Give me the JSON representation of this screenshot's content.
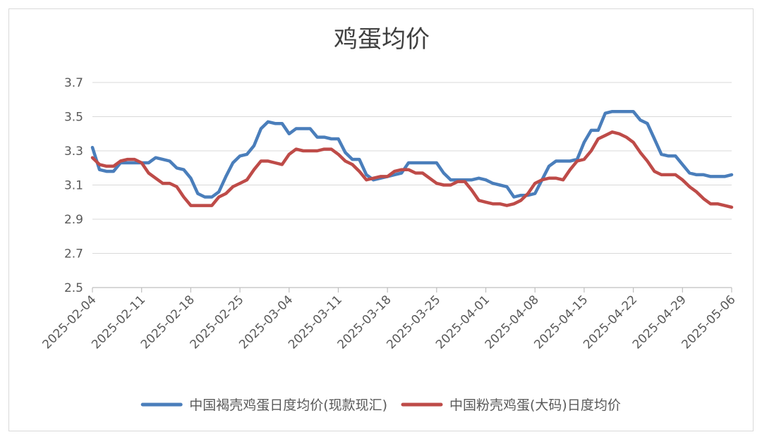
{
  "chart_data": {
    "type": "line",
    "title": "鸡蛋均价",
    "xlabel": "",
    "ylabel": "",
    "ylim": [
      2.5,
      3.7
    ],
    "yticks": [
      2.5,
      2.7,
      2.9,
      3.1,
      3.3,
      3.5,
      3.7
    ],
    "ytick_labels": [
      "2.5",
      "2.7",
      "2.9",
      "3.1",
      "3.3",
      "3.5",
      "3.7"
    ],
    "x_range": [
      "2025-02-04",
      "2025-05-06"
    ],
    "xtick_labels": [
      "2025-02-04",
      "2025-02-11",
      "2025-02-18",
      "2025-02-25",
      "2025-03-04",
      "2025-03-11",
      "2025-03-18",
      "2025-03-25",
      "2025-04-01",
      "2025-04-08",
      "2025-04-15",
      "2025-04-22",
      "2025-04-29",
      "2025-05-06"
    ],
    "grid": true,
    "legend_position": "bottom",
    "series": [
      {
        "name": "中国褐壳鸡蛋日度均价(现款现汇)",
        "color": "#4a7ebb",
        "points": [
          [
            "2025-02-04",
            3.32
          ],
          [
            "2025-02-05",
            3.19
          ],
          [
            "2025-02-06",
            3.18
          ],
          [
            "2025-02-07",
            3.18
          ],
          [
            "2025-02-08",
            3.23
          ],
          [
            "2025-02-09",
            3.23
          ],
          [
            "2025-02-10",
            3.23
          ],
          [
            "2025-02-11",
            3.23
          ],
          [
            "2025-02-12",
            3.23
          ],
          [
            "2025-02-13",
            3.26
          ],
          [
            "2025-02-14",
            3.25
          ],
          [
            "2025-02-15",
            3.24
          ],
          [
            "2025-02-16",
            3.2
          ],
          [
            "2025-02-17",
            3.19
          ],
          [
            "2025-02-18",
            3.14
          ],
          [
            "2025-02-19",
            3.05
          ],
          [
            "2025-02-20",
            3.03
          ],
          [
            "2025-02-21",
            3.03
          ],
          [
            "2025-02-22",
            3.06
          ],
          [
            "2025-02-23",
            3.15
          ],
          [
            "2025-02-24",
            3.23
          ],
          [
            "2025-02-25",
            3.27
          ],
          [
            "2025-02-26",
            3.28
          ],
          [
            "2025-02-27",
            3.33
          ],
          [
            "2025-02-28",
            3.43
          ],
          [
            "2025-03-01",
            3.47
          ],
          [
            "2025-03-02",
            3.46
          ],
          [
            "2025-03-03",
            3.46
          ],
          [
            "2025-03-04",
            3.4
          ],
          [
            "2025-03-05",
            3.43
          ],
          [
            "2025-03-06",
            3.43
          ],
          [
            "2025-03-07",
            3.43
          ],
          [
            "2025-03-08",
            3.38
          ],
          [
            "2025-03-09",
            3.38
          ],
          [
            "2025-03-10",
            3.37
          ],
          [
            "2025-03-11",
            3.37
          ],
          [
            "2025-03-12",
            3.29
          ],
          [
            "2025-03-13",
            3.25
          ],
          [
            "2025-03-14",
            3.25
          ],
          [
            "2025-03-15",
            3.16
          ],
          [
            "2025-03-16",
            3.13
          ],
          [
            "2025-03-17",
            3.14
          ],
          [
            "2025-03-18",
            3.15
          ],
          [
            "2025-03-19",
            3.16
          ],
          [
            "2025-03-20",
            3.17
          ],
          [
            "2025-03-21",
            3.23
          ],
          [
            "2025-03-22",
            3.23
          ],
          [
            "2025-03-23",
            3.23
          ],
          [
            "2025-03-24",
            3.23
          ],
          [
            "2025-03-25",
            3.23
          ],
          [
            "2025-03-26",
            3.17
          ],
          [
            "2025-03-27",
            3.13
          ],
          [
            "2025-03-28",
            3.13
          ],
          [
            "2025-03-29",
            3.13
          ],
          [
            "2025-03-30",
            3.13
          ],
          [
            "2025-03-31",
            3.14
          ],
          [
            "2025-04-01",
            3.13
          ],
          [
            "2025-04-02",
            3.11
          ],
          [
            "2025-04-03",
            3.1
          ],
          [
            "2025-04-04",
            3.09
          ],
          [
            "2025-04-05",
            3.03
          ],
          [
            "2025-04-06",
            3.04
          ],
          [
            "2025-04-07",
            3.04
          ],
          [
            "2025-04-08",
            3.05
          ],
          [
            "2025-04-09",
            3.13
          ],
          [
            "2025-04-10",
            3.21
          ],
          [
            "2025-04-11",
            3.24
          ],
          [
            "2025-04-12",
            3.24
          ],
          [
            "2025-04-13",
            3.24
          ],
          [
            "2025-04-14",
            3.25
          ],
          [
            "2025-04-15",
            3.35
          ],
          [
            "2025-04-16",
            3.42
          ],
          [
            "2025-04-17",
            3.42
          ],
          [
            "2025-04-18",
            3.52
          ],
          [
            "2025-04-19",
            3.53
          ],
          [
            "2025-04-20",
            3.53
          ],
          [
            "2025-04-21",
            3.53
          ],
          [
            "2025-04-22",
            3.53
          ],
          [
            "2025-04-23",
            3.48
          ],
          [
            "2025-04-24",
            3.46
          ],
          [
            "2025-04-25",
            3.37
          ],
          [
            "2025-04-26",
            3.28
          ],
          [
            "2025-04-27",
            3.27
          ],
          [
            "2025-04-28",
            3.27
          ],
          [
            "2025-04-29",
            3.22
          ],
          [
            "2025-04-30",
            3.17
          ],
          [
            "2025-05-01",
            3.16
          ],
          [
            "2025-05-02",
            3.16
          ],
          [
            "2025-05-03",
            3.15
          ],
          [
            "2025-05-04",
            3.15
          ],
          [
            "2025-05-05",
            3.15
          ],
          [
            "2025-05-06",
            3.16
          ]
        ]
      },
      {
        "name": "中国粉壳鸡蛋(大码)日度均价",
        "color": "#be4b48",
        "points": [
          [
            "2025-02-04",
            3.26
          ],
          [
            "2025-02-05",
            3.22
          ],
          [
            "2025-02-06",
            3.21
          ],
          [
            "2025-02-07",
            3.21
          ],
          [
            "2025-02-08",
            3.24
          ],
          [
            "2025-02-09",
            3.25
          ],
          [
            "2025-02-10",
            3.25
          ],
          [
            "2025-02-11",
            3.23
          ],
          [
            "2025-02-12",
            3.17
          ],
          [
            "2025-02-13",
            3.14
          ],
          [
            "2025-02-14",
            3.11
          ],
          [
            "2025-02-15",
            3.11
          ],
          [
            "2025-02-16",
            3.09
          ],
          [
            "2025-02-17",
            3.03
          ],
          [
            "2025-02-18",
            2.98
          ],
          [
            "2025-02-19",
            2.98
          ],
          [
            "2025-02-20",
            2.98
          ],
          [
            "2025-02-21",
            2.98
          ],
          [
            "2025-02-22",
            3.03
          ],
          [
            "2025-02-23",
            3.05
          ],
          [
            "2025-02-24",
            3.09
          ],
          [
            "2025-02-25",
            3.11
          ],
          [
            "2025-02-26",
            3.13
          ],
          [
            "2025-02-27",
            3.19
          ],
          [
            "2025-02-28",
            3.24
          ],
          [
            "2025-03-01",
            3.24
          ],
          [
            "2025-03-02",
            3.23
          ],
          [
            "2025-03-03",
            3.22
          ],
          [
            "2025-03-04",
            3.28
          ],
          [
            "2025-03-05",
            3.31
          ],
          [
            "2025-03-06",
            3.3
          ],
          [
            "2025-03-07",
            3.3
          ],
          [
            "2025-03-08",
            3.3
          ],
          [
            "2025-03-09",
            3.31
          ],
          [
            "2025-03-10",
            3.31
          ],
          [
            "2025-03-11",
            3.28
          ],
          [
            "2025-03-12",
            3.24
          ],
          [
            "2025-03-13",
            3.22
          ],
          [
            "2025-03-14",
            3.18
          ],
          [
            "2025-03-15",
            3.13
          ],
          [
            "2025-03-16",
            3.14
          ],
          [
            "2025-03-17",
            3.15
          ],
          [
            "2025-03-18",
            3.15
          ],
          [
            "2025-03-19",
            3.18
          ],
          [
            "2025-03-20",
            3.19
          ],
          [
            "2025-03-21",
            3.19
          ],
          [
            "2025-03-22",
            3.17
          ],
          [
            "2025-03-23",
            3.17
          ],
          [
            "2025-03-24",
            3.14
          ],
          [
            "2025-03-25",
            3.11
          ],
          [
            "2025-03-26",
            3.1
          ],
          [
            "2025-03-27",
            3.1
          ],
          [
            "2025-03-28",
            3.12
          ],
          [
            "2025-03-29",
            3.12
          ],
          [
            "2025-03-30",
            3.07
          ],
          [
            "2025-03-31",
            3.01
          ],
          [
            "2025-04-01",
            3.0
          ],
          [
            "2025-04-02",
            2.99
          ],
          [
            "2025-04-03",
            2.99
          ],
          [
            "2025-04-04",
            2.98
          ],
          [
            "2025-04-05",
            2.99
          ],
          [
            "2025-04-06",
            3.01
          ],
          [
            "2025-04-07",
            3.05
          ],
          [
            "2025-04-08",
            3.11
          ],
          [
            "2025-04-09",
            3.13
          ],
          [
            "2025-04-10",
            3.14
          ],
          [
            "2025-04-11",
            3.14
          ],
          [
            "2025-04-12",
            3.13
          ],
          [
            "2025-04-13",
            3.19
          ],
          [
            "2025-04-14",
            3.24
          ],
          [
            "2025-04-15",
            3.25
          ],
          [
            "2025-04-16",
            3.3
          ],
          [
            "2025-04-17",
            3.37
          ],
          [
            "2025-04-18",
            3.39
          ],
          [
            "2025-04-19",
            3.41
          ],
          [
            "2025-04-20",
            3.4
          ],
          [
            "2025-04-21",
            3.38
          ],
          [
            "2025-04-22",
            3.35
          ],
          [
            "2025-04-23",
            3.29
          ],
          [
            "2025-04-24",
            3.24
          ],
          [
            "2025-04-25",
            3.18
          ],
          [
            "2025-04-26",
            3.16
          ],
          [
            "2025-04-27",
            3.16
          ],
          [
            "2025-04-28",
            3.16
          ],
          [
            "2025-04-29",
            3.13
          ],
          [
            "2025-04-30",
            3.09
          ],
          [
            "2025-05-01",
            3.06
          ],
          [
            "2025-05-02",
            3.02
          ],
          [
            "2025-05-03",
            2.99
          ],
          [
            "2025-05-04",
            2.99
          ],
          [
            "2025-05-05",
            2.98
          ],
          [
            "2025-05-06",
            2.97
          ]
        ]
      }
    ]
  }
}
